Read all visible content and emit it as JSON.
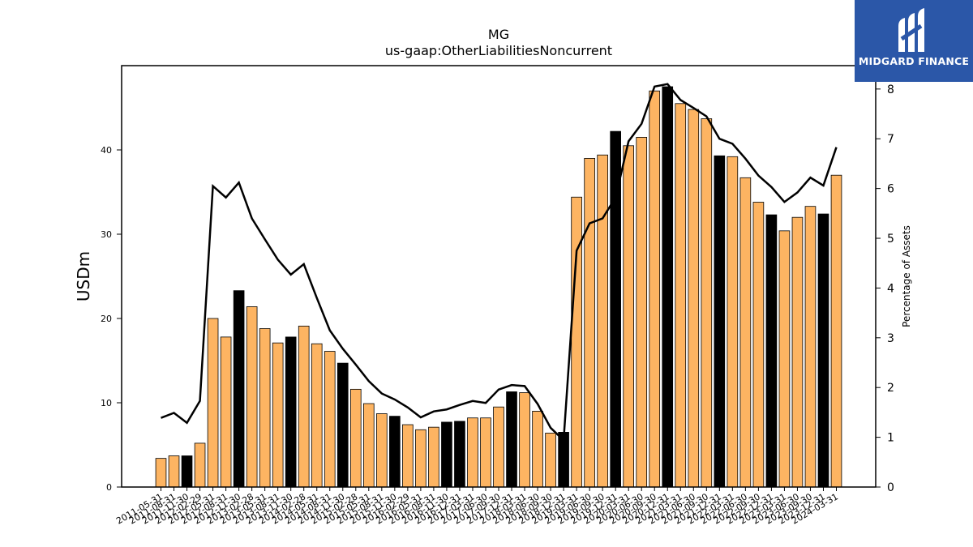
{
  "brand": {
    "name": "MIDGARD FINANCE",
    "icon": "midgard-logo-icon",
    "background": "#2b57a8"
  },
  "chart_data": {
    "type": "bar",
    "title": "MG",
    "subtitle": "us-gaap:OtherLiabilitiesNoncurrent",
    "ylabel": "USDm",
    "y2label": "Percentage of Assets",
    "ylim": [
      0,
      50
    ],
    "y2lim": [
      0,
      8.47
    ],
    "yticks": [
      0,
      10,
      20,
      30,
      40
    ],
    "y2ticks": [
      0,
      1,
      2,
      3,
      4,
      5,
      6,
      7,
      8
    ],
    "grid": false,
    "colors": {
      "bar_default": "#fdb462",
      "bar_highlight": "#000000",
      "line": "#000000"
    },
    "categories": [
      "2011-05-31",
      "2011-08-31",
      "2011-11-30",
      "2012-02-29",
      "2012-05-31",
      "2012-08-31",
      "2012-11-30",
      "2013-02-28",
      "2013-05-31",
      "2013-08-31",
      "2013-11-30",
      "2014-02-28",
      "2014-05-31",
      "2014-08-31",
      "2014-11-30",
      "2015-02-28",
      "2015-05-31",
      "2015-08-31",
      "2015-11-30",
      "2016-02-29",
      "2016-05-31",
      "2016-08-31",
      "2016-11-30",
      "2016-12-31",
      "2017-03-31",
      "2017-06-30",
      "2017-09-30",
      "2017-12-31",
      "2018-03-31",
      "2018-06-30",
      "2018-09-30",
      "2018-12-31",
      "2019-03-31",
      "2019-06-30",
      "2019-09-30",
      "2019-12-31",
      "2020-03-31",
      "2020-06-30",
      "2020-09-30",
      "2020-12-31",
      "2021-03-31",
      "2021-06-30",
      "2021-09-30",
      "2021-12-31",
      "2022-03-31",
      "2022-06-30",
      "2022-09-30",
      "2022-12-31",
      "2023-03-31",
      "2023-06-30",
      "2023-09-30",
      "2023-12-31",
      "2024-03-31"
    ],
    "series": [
      {
        "kind": "bar",
        "axis": "left",
        "values": [
          3.4,
          3.7,
          3.7,
          5.2,
          20.0,
          17.8,
          23.3,
          21.4,
          18.8,
          17.1,
          17.8,
          19.1,
          17.0,
          16.1,
          14.7,
          11.6,
          9.9,
          8.7,
          8.4,
          7.4,
          6.8,
          7.1,
          7.7,
          7.8,
          8.2,
          8.2,
          9.5,
          11.3,
          11.2,
          9.0,
          6.4,
          6.5,
          34.4,
          39.0,
          39.4,
          42.2,
          40.5,
          41.5,
          47.0,
          47.5,
          45.5,
          44.8,
          43.7,
          39.3,
          39.2,
          36.7,
          33.8,
          32.3,
          30.4,
          32.0,
          33.3,
          32.4,
          37.0
        ],
        "highlight": [
          false,
          false,
          true,
          false,
          false,
          false,
          true,
          false,
          false,
          false,
          true,
          false,
          false,
          false,
          true,
          false,
          false,
          false,
          true,
          false,
          false,
          false,
          true,
          true,
          false,
          false,
          false,
          true,
          false,
          false,
          false,
          true,
          false,
          false,
          false,
          true,
          false,
          false,
          false,
          true,
          false,
          false,
          false,
          true,
          false,
          false,
          false,
          true,
          false,
          false,
          false,
          true,
          false
        ]
      },
      {
        "kind": "line",
        "axis": "right",
        "values": [
          1.39,
          1.49,
          1.29,
          1.73,
          6.05,
          5.82,
          6.12,
          5.4,
          4.98,
          4.57,
          4.27,
          4.48,
          3.8,
          3.15,
          2.78,
          2.46,
          2.13,
          1.88,
          1.76,
          1.6,
          1.4,
          1.52,
          1.56,
          1.65,
          1.73,
          1.69,
          1.96,
          2.05,
          2.03,
          1.67,
          1.19,
          0.94,
          4.75,
          5.3,
          5.4,
          5.82,
          6.95,
          7.3,
          8.05,
          8.1,
          7.78,
          7.62,
          7.45,
          7.0,
          6.9,
          6.6,
          6.26,
          6.03,
          5.73,
          5.92,
          6.22,
          6.06,
          6.83
        ]
      }
    ]
  }
}
